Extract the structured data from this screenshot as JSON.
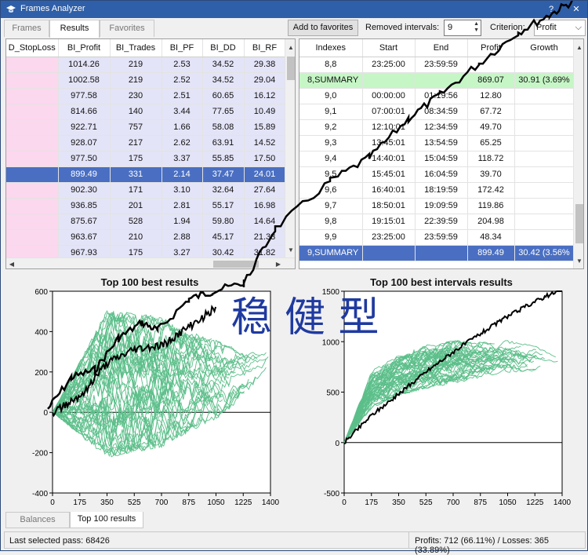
{
  "window": {
    "title": "Frames Analyzer"
  },
  "tabs": [
    {
      "label": "Frames"
    },
    {
      "label": "Results"
    },
    {
      "label": "Favorites"
    }
  ],
  "toolbar": {
    "add_favorites": "Add to favorites",
    "removed_label": "Removed intervals:",
    "removed_value": "9",
    "criterion_label": "Criterion:",
    "criterion_value": "Profit"
  },
  "left_table": {
    "columns": [
      "D_StopLoss",
      "BI_Profit",
      "BI_Trades",
      "BI_PF",
      "BI_DD",
      "BI_RF"
    ],
    "rows": [
      [
        "",
        "1014.26",
        "219",
        "2.53",
        "34.52",
        "29.38"
      ],
      [
        "",
        "1002.58",
        "219",
        "2.52",
        "34.52",
        "29.04"
      ],
      [
        "",
        "977.58",
        "230",
        "2.51",
        "60.65",
        "16.12"
      ],
      [
        "",
        "814.66",
        "140",
        "3.44",
        "77.65",
        "10.49"
      ],
      [
        "",
        "922.71",
        "757",
        "1.66",
        "58.08",
        "15.89"
      ],
      [
        "",
        "928.07",
        "217",
        "2.62",
        "63.91",
        "14.52"
      ],
      [
        "",
        "977.50",
        "175",
        "3.37",
        "55.85",
        "17.50"
      ],
      [
        "",
        "899.49",
        "331",
        "2.14",
        "37.47",
        "24.01"
      ],
      [
        "",
        "902.30",
        "171",
        "3.10",
        "32.64",
        "27.64"
      ],
      [
        "",
        "936.85",
        "201",
        "2.81",
        "55.17",
        "16.98"
      ],
      [
        "",
        "875.67",
        "528",
        "1.94",
        "59.80",
        "14.64"
      ],
      [
        "",
        "963.67",
        "210",
        "2.88",
        "45.17",
        "21.33"
      ],
      [
        "",
        "967.93",
        "175",
        "3.27",
        "30.42",
        "31.82"
      ]
    ],
    "selected_row": 7
  },
  "right_table": {
    "columns": [
      "Indexes",
      "Start",
      "End",
      "Profit",
      "Growth"
    ],
    "rows": [
      [
        "8,8",
        "23:25:00",
        "23:59:59",
        "",
        ""
      ],
      [
        "8,SUMMARY",
        "",
        "",
        "869.07",
        "30.91 (3.69%"
      ],
      [
        "9,0",
        "00:00:00",
        "01:19:56",
        "12.80",
        ""
      ],
      [
        "9,1",
        "07:00:01",
        "08:34:59",
        "67.72",
        ""
      ],
      [
        "9,2",
        "12:10:01",
        "12:34:59",
        "49.70",
        ""
      ],
      [
        "9,3",
        "13:45:01",
        "13:54:59",
        "65.25",
        ""
      ],
      [
        "9,4",
        "14:40:01",
        "15:04:59",
        "118.72",
        ""
      ],
      [
        "9,5",
        "15:45:01",
        "16:04:59",
        "39.70",
        ""
      ],
      [
        "9,6",
        "16:40:01",
        "18:19:59",
        "172.42",
        ""
      ],
      [
        "9,7",
        "18:50:01",
        "19:09:59",
        "119.86",
        ""
      ],
      [
        "9,8",
        "19:15:01",
        "22:39:59",
        "204.98",
        ""
      ],
      [
        "9,9",
        "23:25:00",
        "23:59:59",
        "48.34",
        ""
      ],
      [
        "9,SUMMARY",
        "",
        "",
        "899.49",
        "30.42 (3.56%"
      ]
    ],
    "summary_rows": [
      1
    ],
    "selected_row": 12
  },
  "chart_data": [
    {
      "type": "line",
      "title": "Top 100 best results",
      "xlabel": "",
      "ylabel": "",
      "xlim": [
        0,
        1400
      ],
      "ylim": [
        -400,
        600
      ],
      "xticks": [
        0,
        175,
        350,
        525,
        700,
        875,
        1050,
        1225,
        1400
      ],
      "yticks": [
        -400,
        -200,
        0,
        200,
        400,
        600
      ],
      "series_color": "#5cbf8a",
      "highlight_color": "#000000",
      "series_count": 100,
      "band_x": [
        0,
        350,
        700,
        875,
        1050,
        1225,
        1400
      ],
      "band_low": [
        0,
        -200,
        -150,
        -80,
        -20,
        80,
        250
      ],
      "band_high": [
        0,
        480,
        450,
        380,
        350,
        290,
        310
      ],
      "highlight": {
        "x": [
          0,
          175,
          350,
          525,
          700,
          875,
          1050
        ],
        "y": [
          0,
          80,
          240,
          310,
          330,
          420,
          520
        ]
      }
    },
    {
      "type": "line",
      "title": "Top 100 best intervals results",
      "xlabel": "",
      "ylabel": "",
      "xlim": [
        0,
        1400
      ],
      "ylim": [
        -500,
        1500
      ],
      "xticks": [
        0,
        175,
        350,
        525,
        700,
        875,
        1050,
        1225,
        1400
      ],
      "yticks": [
        -500,
        0,
        500,
        1000,
        1500
      ],
      "series_color": "#5cbf8a",
      "highlight_color": "#000000",
      "series_count": 100,
      "band_x": [
        0,
        175,
        350,
        525,
        700,
        875,
        1050,
        1225,
        1400
      ],
      "band_low": [
        0,
        350,
        480,
        550,
        600,
        650,
        700,
        720,
        750
      ],
      "band_high": [
        0,
        700,
        850,
        950,
        1000,
        980,
        1000,
        950,
        820
      ],
      "highlight": {
        "x": [
          0,
          175,
          350,
          525,
          700,
          875,
          1050,
          1225,
          1400
        ],
        "y": [
          0,
          270,
          480,
          700,
          900,
          1080,
          1250,
          1400,
          1520
        ]
      }
    }
  ],
  "watermark_text": "稳 健 型",
  "bottom_tabs": [
    {
      "label": "Balances"
    },
    {
      "label": "Top 100 results"
    }
  ],
  "status": {
    "last_pass": "Last selected pass: 68426",
    "profits": "Profits: 712 (66.11%) / Losses: 365 (33.89%)"
  }
}
